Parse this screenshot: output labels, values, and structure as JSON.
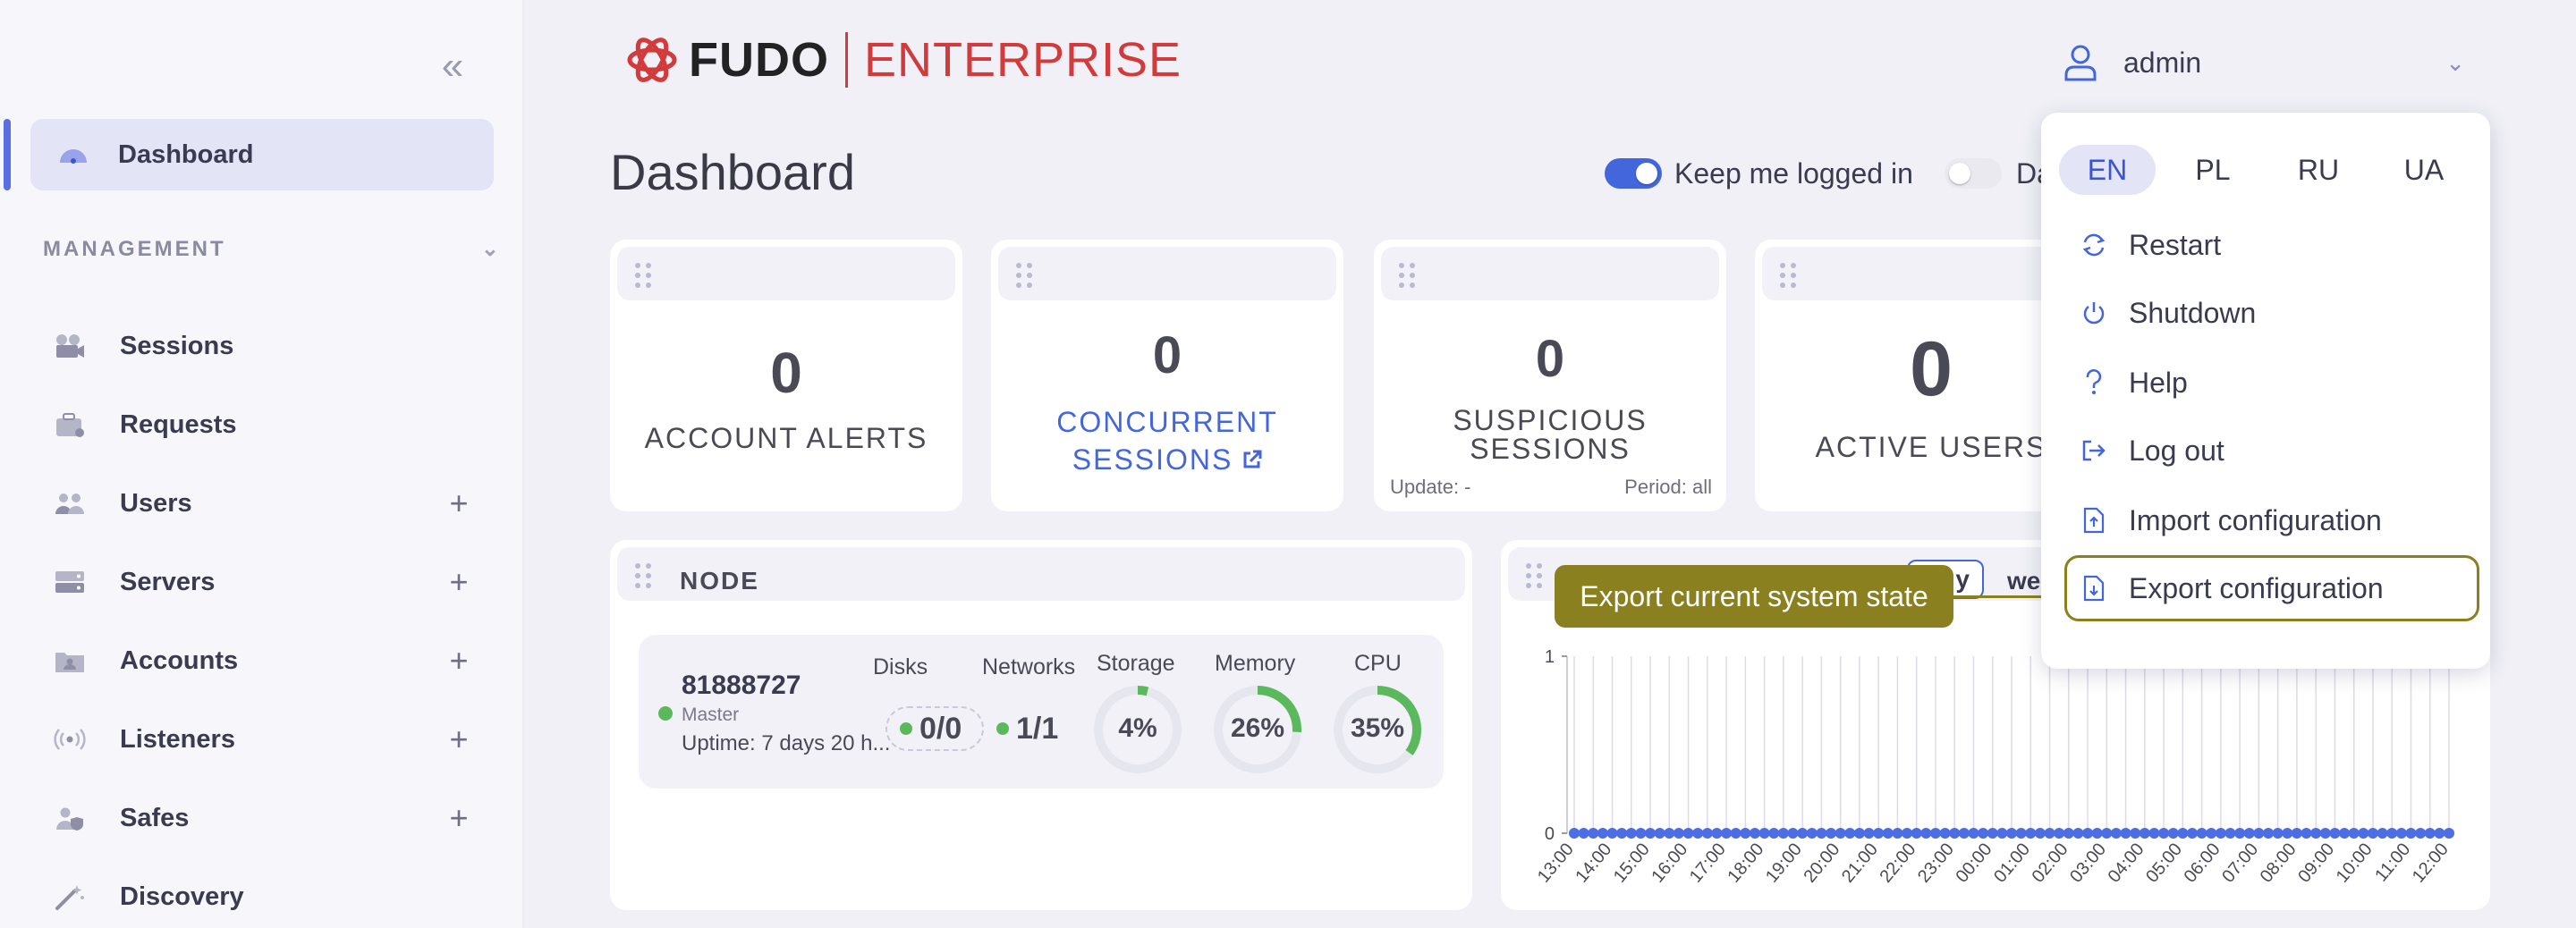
{
  "sidebar": {
    "collapse_icon": "double-chevron-left",
    "dashboard_label": "Dashboard",
    "section_title": "MANAGEMENT",
    "items": [
      {
        "label": "Sessions",
        "icon": "camera-icon",
        "expandable": false
      },
      {
        "label": "Requests",
        "icon": "briefcase-icon",
        "expandable": false
      },
      {
        "label": "Users",
        "icon": "users-icon",
        "expandable": true
      },
      {
        "label": "Servers",
        "icon": "server-icon",
        "expandable": true
      },
      {
        "label": "Accounts",
        "icon": "account-folder-icon",
        "expandable": true
      },
      {
        "label": "Listeners",
        "icon": "broadcast-icon",
        "expandable": true
      },
      {
        "label": "Safes",
        "icon": "safe-user-icon",
        "expandable": true
      },
      {
        "label": "Discovery",
        "icon": "magic-wand-icon",
        "expandable": false
      }
    ],
    "plus_symbol": "+"
  },
  "header": {
    "logo_brand": "FUDO",
    "logo_product": "ENTERPRISE",
    "username": "admin"
  },
  "page": {
    "title": "Dashboard",
    "keep_logged_label": "Keep me logged in",
    "keep_logged_on": true,
    "second_toggle_label": "Da",
    "second_toggle_on": false
  },
  "stats": {
    "account_alerts": {
      "value": "0",
      "label": "ACCOUNT ALERTS"
    },
    "concurrent_sessions": {
      "value": "0",
      "label_line1": "CONCURRENT",
      "label_line2": "SESSIONS"
    },
    "suspicious_sessions": {
      "value": "0",
      "label_line1": "SUSPICIOUS",
      "label_line2": "SESSIONS",
      "update": "Update: -",
      "period": "Period: all"
    },
    "active_users": {
      "value": "0",
      "label": "ACTIVE USERS"
    }
  },
  "node": {
    "title": "NODE",
    "id": "81888727",
    "role": "Master",
    "uptime": "Uptime: 7 days 20 h...",
    "disks_label": "Disks",
    "disks_value": "0/0",
    "networks_label": "Networks",
    "networks_value": "1/1",
    "storage_label": "Storage",
    "storage_value": "4%",
    "storage_fraction": 0.04,
    "memory_label": "Memory",
    "memory_value": "26%",
    "memory_fraction": 0.26,
    "cpu_label": "CPU",
    "cpu_value": "35%",
    "cpu_fraction": 0.35
  },
  "chart_panel": {
    "tab_day": "y",
    "tab_week": "we"
  },
  "tooltip": {
    "text": "Export current system state"
  },
  "menu": {
    "languages": [
      "EN",
      "PL",
      "RU",
      "UA"
    ],
    "active_language": "EN",
    "items": [
      {
        "label": "Restart",
        "icon": "restart-icon"
      },
      {
        "label": "Shutdown",
        "icon": "power-icon"
      },
      {
        "label": "Help",
        "icon": "help-icon"
      },
      {
        "label": "Log out",
        "icon": "logout-icon"
      },
      {
        "label": "Import configuration",
        "icon": "file-import-icon"
      },
      {
        "label": "Export configuration",
        "icon": "file-export-icon"
      }
    ]
  },
  "chart_data": {
    "type": "line",
    "x": [
      "13:00",
      "14:00",
      "15:00",
      "16:00",
      "17:00",
      "18:00",
      "19:00",
      "20:00",
      "21:00",
      "22:00",
      "23:00",
      "00:00",
      "01:00",
      "02:00",
      "03:00",
      "04:00",
      "05:00",
      "06:00",
      "07:00",
      "08:00",
      "09:00",
      "10:00",
      "11:00",
      "12:00"
    ],
    "series": [
      {
        "values": [
          0,
          0,
          0,
          0,
          0,
          0,
          0,
          0,
          0,
          0,
          0,
          0,
          0,
          0,
          0,
          0,
          0,
          0,
          0,
          0,
          0,
          0,
          0,
          0
        ]
      }
    ],
    "ylim": [
      0,
      1
    ],
    "yticks": [
      "0",
      "1"
    ],
    "grid": true,
    "colors": {
      "series": "#4d6ee3"
    }
  },
  "colors": {
    "accent": "#4466dd",
    "brand_red": "#d23b3b",
    "highlight": "#8a8020",
    "gauge_green": "#5cb85c"
  }
}
